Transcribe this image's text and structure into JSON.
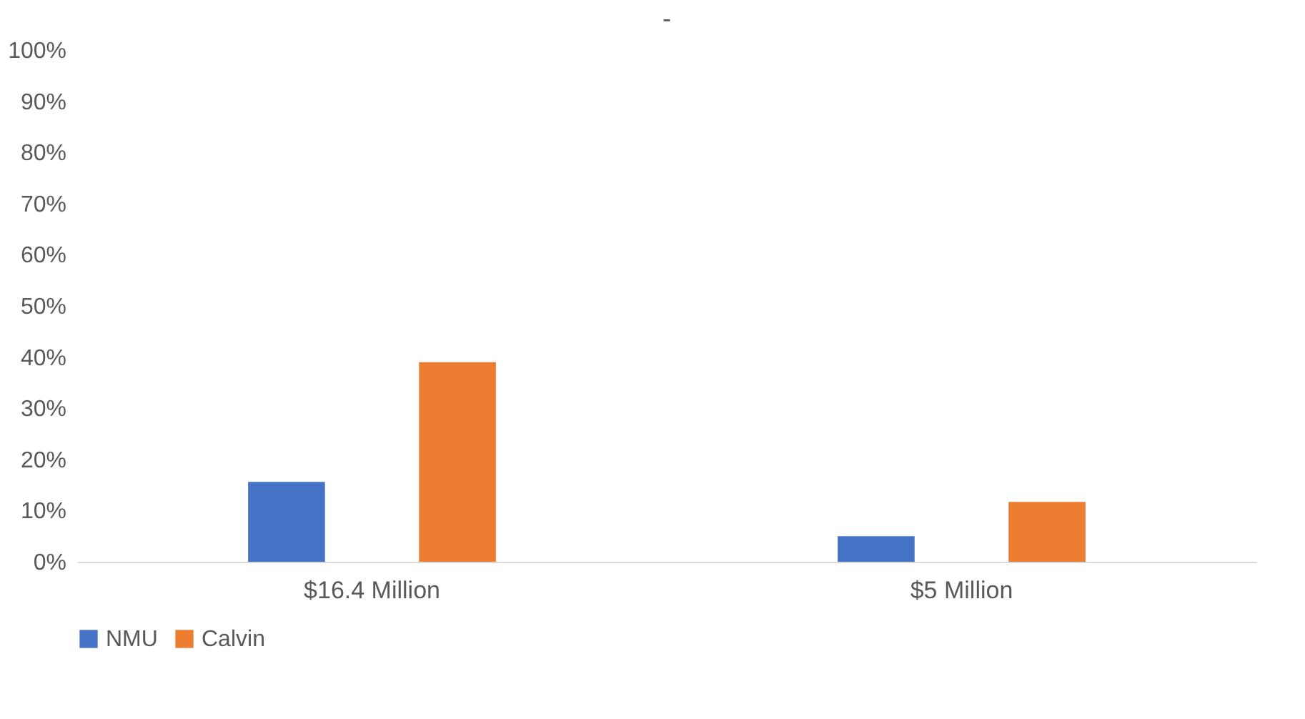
{
  "chart_data": {
    "type": "bar",
    "title": "-",
    "categories": [
      "$16.4 Million",
      "$5 Million"
    ],
    "series": [
      {
        "name": "NMU",
        "color": "#4472c4",
        "values": [
          15.6,
          5
        ]
      },
      {
        "name": "Calvin",
        "color": "#ed7d31",
        "values": [
          39,
          11.7
        ]
      }
    ],
    "ylim": [
      0,
      100
    ],
    "yticks": [
      {
        "value": 0,
        "label": "0%"
      },
      {
        "value": 10,
        "label": "10%"
      },
      {
        "value": 20,
        "label": "20%"
      },
      {
        "value": 30,
        "label": "30%"
      },
      {
        "value": 40,
        "label": "40%"
      },
      {
        "value": 50,
        "label": "50%"
      },
      {
        "value": 60,
        "label": "60%"
      },
      {
        "value": 70,
        "label": "70%"
      },
      {
        "value": 80,
        "label": "80%"
      },
      {
        "value": 90,
        "label": "90%"
      },
      {
        "value": 100,
        "label": "100%"
      }
    ],
    "grid": false,
    "legend": "bottom"
  }
}
